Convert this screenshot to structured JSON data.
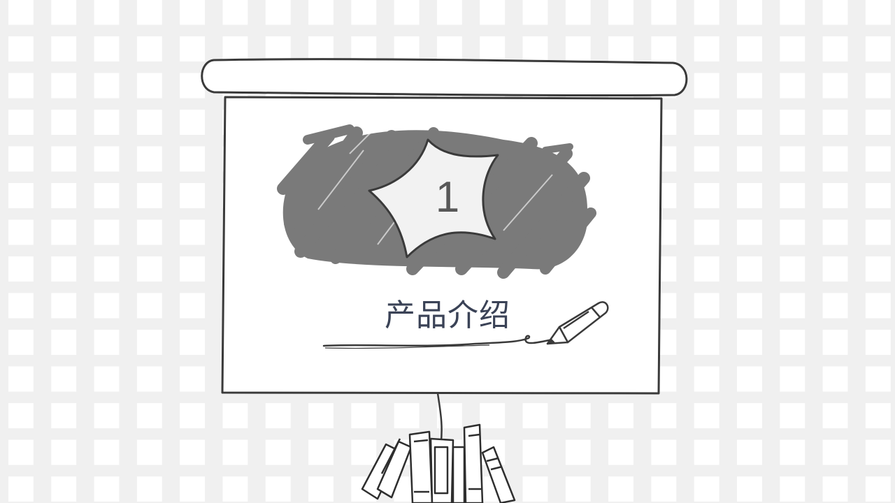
{
  "slide": {
    "section_number": "1",
    "section_title": "产品介绍"
  },
  "colors": {
    "background": "#f0f0f0",
    "scribble": "#7a7a7a",
    "line": "#3a3a3a",
    "title_text": "#3a4256"
  },
  "icons": [
    "projector-screen-icon",
    "scribble-blob",
    "star-badge-icon",
    "pencil-icon",
    "books-icon"
  ]
}
